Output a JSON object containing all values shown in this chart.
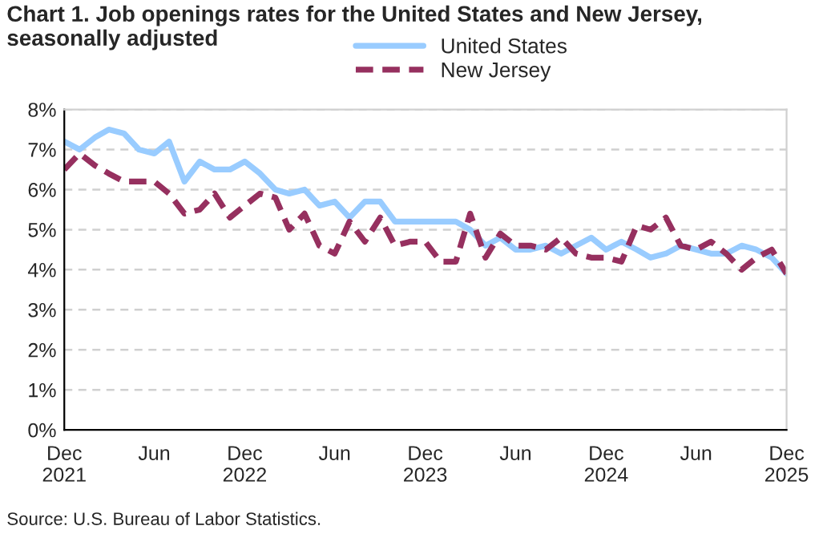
{
  "chart_data": {
    "type": "line",
    "title": "Chart 1. Job openings rates for the United States and New Jersey,\nseasonally adjusted",
    "x": [
      "2021-12",
      "2022-01",
      "2022-02",
      "2022-03",
      "2022-04",
      "2022-05",
      "2022-06",
      "2022-07",
      "2022-08",
      "2022-09",
      "2022-10",
      "2022-11",
      "2022-12",
      "2023-01",
      "2023-02",
      "2023-03",
      "2023-04",
      "2023-05",
      "2023-06",
      "2023-07",
      "2023-08",
      "2023-09",
      "2023-10",
      "2023-11",
      "2023-12",
      "2024-01",
      "2024-02",
      "2024-03",
      "2024-04",
      "2024-05",
      "2024-06",
      "2024-07",
      "2024-08",
      "2024-09",
      "2024-10",
      "2024-11",
      "2024-12",
      "2025-01",
      "2025-02",
      "2025-03",
      "2025-04",
      "2025-05",
      "2025-06",
      "2025-07",
      "2025-08",
      "2025-09",
      "2025-10",
      "2025-11",
      "2025-12"
    ],
    "series": [
      {
        "name": "United States",
        "color": "#99ccff",
        "line_style": "solid",
        "values": [
          7.2,
          7.0,
          7.3,
          7.5,
          7.4,
          7.0,
          6.9,
          7.2,
          6.2,
          6.7,
          6.5,
          6.5,
          6.7,
          6.4,
          6.0,
          5.9,
          6.0,
          5.6,
          5.7,
          5.3,
          5.7,
          5.7,
          5.2,
          5.2,
          5.2,
          5.2,
          5.2,
          5.0,
          4.6,
          4.8,
          4.5,
          4.5,
          4.6,
          4.4,
          4.6,
          4.8,
          4.5,
          4.7,
          4.5,
          4.3,
          4.4,
          4.6,
          4.5,
          4.4,
          4.4,
          4.6,
          4.5,
          4.3,
          3.9
        ]
      },
      {
        "name": "New Jersey",
        "color": "#96305f",
        "line_style": "dashed",
        "values": [
          6.5,
          6.9,
          6.6,
          6.4,
          6.2,
          6.2,
          6.2,
          5.9,
          5.4,
          5.5,
          5.9,
          5.3,
          5.6,
          5.9,
          5.8,
          5.0,
          5.4,
          4.6,
          4.4,
          5.2,
          4.7,
          5.3,
          4.6,
          4.7,
          4.7,
          4.2,
          4.2,
          5.4,
          4.3,
          4.9,
          4.6,
          4.6,
          4.5,
          4.8,
          4.4,
          4.3,
          4.3,
          4.2,
          5.1,
          5.0,
          5.3,
          4.6,
          4.5,
          4.7,
          4.4,
          4.0,
          4.3,
          4.5,
          3.9
        ]
      }
    ],
    "xlim": [
      "2021-12",
      "2025-12"
    ],
    "xticks": [
      {
        "value": "2021-12",
        "label": "Dec\n2021"
      },
      {
        "value": "2022-06",
        "label": "Jun"
      },
      {
        "value": "2022-12",
        "label": "Dec\n2022"
      },
      {
        "value": "2023-06",
        "label": "Jun"
      },
      {
        "value": "2023-12",
        "label": "Dec\n2023"
      },
      {
        "value": "2024-06",
        "label": "Jun"
      },
      {
        "value": "2024-12",
        "label": "Dec\n2024"
      },
      {
        "value": "2025-06",
        "label": "Jun"
      },
      {
        "value": "2025-12",
        "label": "Dec\n2025"
      }
    ],
    "ylim": [
      0,
      8
    ],
    "yticks": [
      {
        "value": 0,
        "label": "0%"
      },
      {
        "value": 1,
        "label": "1%"
      },
      {
        "value": 2,
        "label": "2%"
      },
      {
        "value": 3,
        "label": "3%"
      },
      {
        "value": 4,
        "label": "4%"
      },
      {
        "value": 5,
        "label": "5%"
      },
      {
        "value": 6,
        "label": "6%"
      },
      {
        "value": 7,
        "label": "7%"
      },
      {
        "value": 8,
        "label": "8%"
      }
    ],
    "grid": "y",
    "legend": "top",
    "marker": "none",
    "annotations": [
      "Source: U.S. Bureau of Labor Statistics."
    ]
  }
}
